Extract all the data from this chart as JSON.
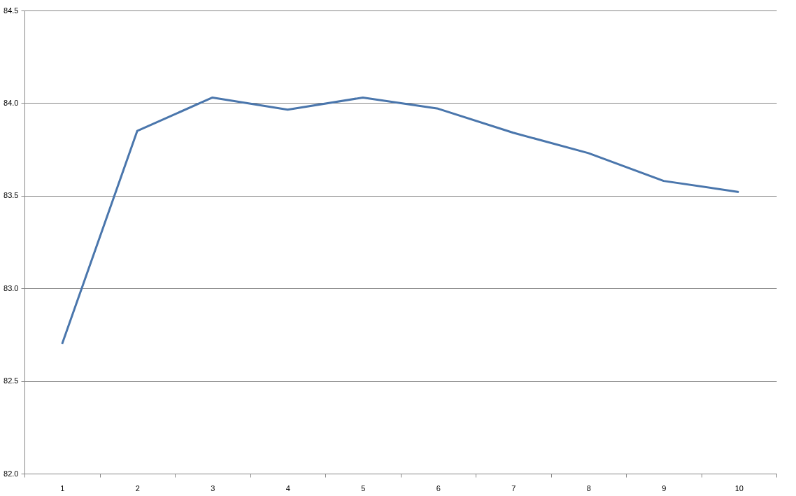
{
  "chart_data": {
    "type": "line",
    "categories": [
      "1",
      "2",
      "3",
      "4",
      "5",
      "6",
      "7",
      "8",
      "9",
      "10"
    ],
    "series": [
      {
        "color": "#4a76ac",
        "values": [
          82.7,
          83.85,
          84.03,
          83.965,
          84.03,
          83.97,
          83.84,
          83.73,
          83.58,
          83.52
        ]
      }
    ],
    "ylim": [
      82.0,
      84.5
    ],
    "yticks": [
      {
        "value": 82,
        "label": "82.0"
      },
      {
        "value": 82.5,
        "label": "82.5"
      },
      {
        "value": 83,
        "label": "83.0"
      },
      {
        "value": 83.5,
        "label": "83.5"
      },
      {
        "value": 84,
        "label": "84.0"
      },
      {
        "value": 84.5,
        "label": "84.5"
      }
    ],
    "grid": "y",
    "marker": "none",
    "line_style": "solid"
  }
}
